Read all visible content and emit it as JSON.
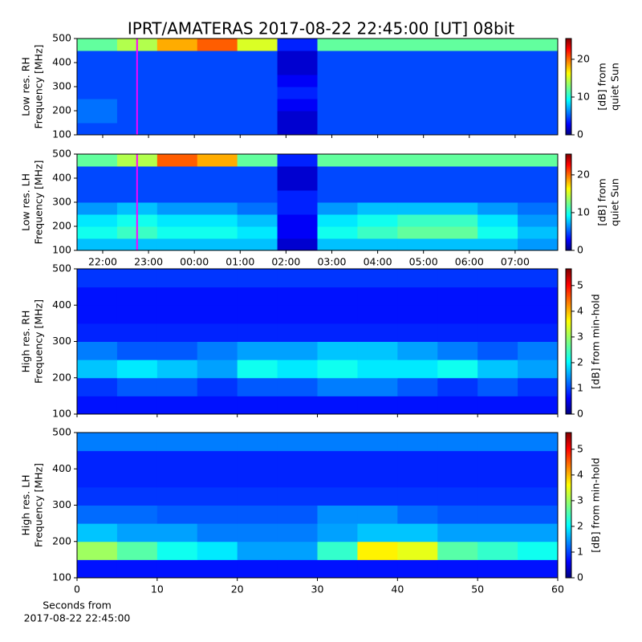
{
  "chart_data": [
    {
      "type": "heatmap",
      "title": "IPRT/AMATERAS 2017-08-22 22:45:00 [UT]   08bit",
      "ylabel": [
        "Low res. RH",
        "Frequency [MHz]"
      ],
      "xlim": [
        21.44,
        31.93
      ],
      "ylim": [
        100,
        500
      ],
      "yticks": [
        100,
        200,
        300,
        400,
        500
      ],
      "vline": 22.75,
      "vline_color": "#ff00ff",
      "clim": [
        0,
        25.5
      ],
      "cticks": [
        0,
        10,
        20
      ],
      "clabel": [
        "[dB] from",
        "quiet Sun"
      ],
      "z": [
        [
          5,
          5,
          5,
          5,
          5,
          2,
          5,
          5,
          5,
          5,
          5,
          5
        ],
        [
          6,
          5,
          5,
          5,
          5,
          2,
          5,
          5,
          5,
          5,
          5,
          5
        ],
        [
          6,
          5,
          5,
          5,
          5,
          3,
          5,
          5,
          5,
          5,
          5,
          5
        ],
        [
          5,
          5,
          5,
          5,
          5,
          4,
          5,
          5,
          5,
          5,
          5,
          5
        ],
        [
          5,
          5,
          5,
          5,
          5,
          3,
          5,
          5,
          5,
          5,
          5,
          5
        ],
        [
          5,
          5,
          5,
          5,
          5,
          2,
          5,
          5,
          5,
          5,
          5,
          5
        ],
        [
          5,
          5,
          5,
          5,
          5,
          2,
          5,
          5,
          5,
          5,
          5,
          5
        ],
        [
          12,
          14,
          18,
          20,
          15,
          4,
          12,
          12,
          12,
          12,
          12,
          12
        ]
      ]
    },
    {
      "type": "heatmap",
      "ylabel": [
        "Low res. LH",
        "Frequency [MHz]"
      ],
      "xlim": [
        21.44,
        31.93
      ],
      "ylim": [
        100,
        500
      ],
      "yticks": [
        100,
        200,
        300,
        400,
        500
      ],
      "xticks": [
        {
          "value": 22,
          "label": "22:00"
        },
        {
          "value": 23,
          "label": "23:00"
        },
        {
          "value": 24,
          "label": "00:00"
        },
        {
          "value": 25,
          "label": "01:00"
        },
        {
          "value": 26,
          "label": "02:00"
        },
        {
          "value": 27,
          "label": "03:00"
        },
        {
          "value": 28,
          "label": "04:00"
        },
        {
          "value": 29,
          "label": "05:00"
        },
        {
          "value": 30,
          "label": "06:00"
        },
        {
          "value": 31,
          "label": "07:00"
        }
      ],
      "vline": 22.75,
      "vline_color": "#ff00ff",
      "clim": [
        0,
        25.5
      ],
      "cticks": [
        0,
        10,
        20
      ],
      "clabel": [
        "[dB] from",
        "quiet Sun"
      ],
      "z": [
        [
          8,
          8,
          8,
          8,
          8,
          2,
          8,
          8,
          8,
          8,
          8,
          7
        ],
        [
          10,
          11,
          10,
          10,
          9,
          3,
          10,
          11,
          12,
          12,
          10,
          8
        ],
        [
          9,
          10,
          9,
          9,
          8,
          3,
          9,
          10,
          11,
          11,
          9,
          7
        ],
        [
          7,
          8,
          7,
          7,
          6,
          4,
          7,
          8,
          8,
          8,
          7,
          6
        ],
        [
          5,
          5,
          5,
          5,
          5,
          4,
          5,
          5,
          5,
          5,
          5,
          5
        ],
        [
          5,
          5,
          5,
          5,
          5,
          2,
          5,
          5,
          5,
          5,
          5,
          5
        ],
        [
          5,
          5,
          5,
          5,
          5,
          2,
          5,
          5,
          5,
          5,
          5,
          5
        ],
        [
          12,
          14,
          20,
          18,
          12,
          4,
          12,
          12,
          12,
          12,
          12,
          12
        ]
      ]
    },
    {
      "type": "heatmap",
      "ylabel": [
        "High res. RH",
        "Frequency [MHz]"
      ],
      "xlim": [
        0,
        60
      ],
      "ylim": [
        100,
        500
      ],
      "yticks": [
        100,
        200,
        300,
        400,
        500
      ],
      "clim": [
        0,
        5.65
      ],
      "cticks": [
        0,
        1,
        2,
        3,
        4,
        5
      ],
      "clabel": [
        "[dB] from min-hold"
      ],
      "z": [
        [
          0.8,
          0.8,
          0.8,
          0.8,
          0.8,
          0.8,
          0.8,
          0.8,
          0.8,
          0.8,
          0.8,
          0.8
        ],
        [
          1.0,
          1.2,
          1.2,
          1.0,
          1.2,
          1.2,
          1.4,
          1.4,
          1.2,
          1.0,
          1.2,
          1.0
        ],
        [
          1.8,
          2.0,
          1.8,
          1.6,
          2.2,
          2.0,
          2.2,
          2.0,
          2.0,
          2.2,
          1.8,
          1.6
        ],
        [
          1.4,
          1.2,
          1.2,
          1.4,
          1.6,
          1.6,
          1.8,
          1.8,
          1.6,
          1.4,
          1.2,
          1.4
        ],
        [
          0.9,
          0.9,
          0.9,
          0.9,
          0.9,
          0.9,
          0.9,
          0.9,
          0.9,
          0.9,
          0.9,
          0.9
        ],
        [
          0.8,
          0.8,
          0.8,
          0.8,
          0.8,
          0.8,
          0.8,
          0.8,
          0.8,
          0.8,
          0.8,
          0.8
        ],
        [
          0.8,
          0.8,
          0.8,
          0.8,
          0.8,
          0.8,
          0.8,
          0.8,
          0.8,
          0.8,
          0.8,
          0.8
        ],
        [
          1.0,
          1.0,
          1.0,
          1.0,
          1.0,
          1.0,
          1.0,
          1.0,
          1.0,
          1.0,
          1.0,
          1.0
        ]
      ]
    },
    {
      "type": "heatmap",
      "ylabel": [
        "High res. LH",
        "Frequency [MHz]"
      ],
      "xlabel": [
        "Seconds from",
        "2017-08-22 22:45:00"
      ],
      "xlim": [
        0,
        60
      ],
      "ylim": [
        100,
        500
      ],
      "yticks": [
        100,
        200,
        300,
        400,
        500
      ],
      "xticks": [
        0,
        10,
        20,
        30,
        40,
        50,
        60
      ],
      "clim": [
        0,
        5.65
      ],
      "cticks": [
        0,
        1,
        2,
        3,
        4,
        5
      ],
      "clabel": [
        "[dB] from min-hold"
      ],
      "z": [
        [
          0.8,
          0.8,
          0.8,
          0.8,
          0.8,
          0.8,
          0.8,
          0.8,
          0.8,
          0.8,
          0.8,
          0.8
        ],
        [
          3.0,
          2.6,
          2.2,
          2.0,
          1.6,
          1.6,
          2.4,
          3.6,
          3.4,
          2.6,
          2.4,
          2.2
        ],
        [
          1.8,
          1.6,
          1.6,
          1.4,
          1.4,
          1.4,
          1.6,
          1.8,
          1.8,
          1.6,
          1.6,
          1.6
        ],
        [
          1.3,
          1.3,
          1.2,
          1.2,
          1.2,
          1.2,
          1.5,
          1.5,
          1.3,
          1.2,
          1.2,
          1.2
        ],
        [
          1.0,
          1.0,
          1.0,
          1.0,
          1.0,
          1.0,
          1.0,
          1.0,
          1.0,
          1.0,
          1.0,
          1.0
        ],
        [
          0.9,
          0.9,
          0.9,
          0.9,
          0.9,
          0.9,
          0.9,
          0.9,
          0.9,
          0.9,
          0.9,
          0.9
        ],
        [
          0.9,
          0.9,
          0.9,
          0.9,
          0.9,
          0.9,
          0.9,
          0.9,
          0.9,
          0.9,
          0.9,
          0.9
        ],
        [
          1.4,
          1.4,
          1.4,
          1.4,
          1.4,
          1.4,
          1.4,
          1.4,
          1.4,
          1.4,
          1.4,
          1.4
        ]
      ]
    }
  ]
}
